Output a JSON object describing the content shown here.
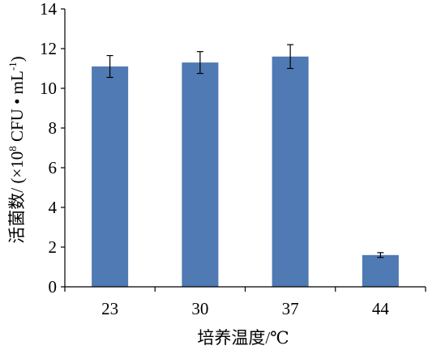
{
  "chart_data": {
    "type": "bar",
    "categories": [
      "23",
      "30",
      "37",
      "44"
    ],
    "values": [
      11.1,
      11.3,
      11.6,
      1.6
    ],
    "errors": [
      0.55,
      0.55,
      0.6,
      0.12
    ],
    "xlabel": "培养温度/℃",
    "ylabel": "活菌数/ (×10",
    "ylabel_exponent": "8",
    "ylabel_unit": " CFU • mL",
    "ylabel_unit_exponent": "-1",
    "ylabel_close": ")",
    "ylim": [
      0,
      14
    ],
    "yticks": [
      "0",
      "2",
      "4",
      "6",
      "8",
      "10",
      "12",
      "14"
    ],
    "grid": false,
    "legend": "none",
    "bar_color": "#4F7AB3",
    "axis_color": "#000000"
  }
}
